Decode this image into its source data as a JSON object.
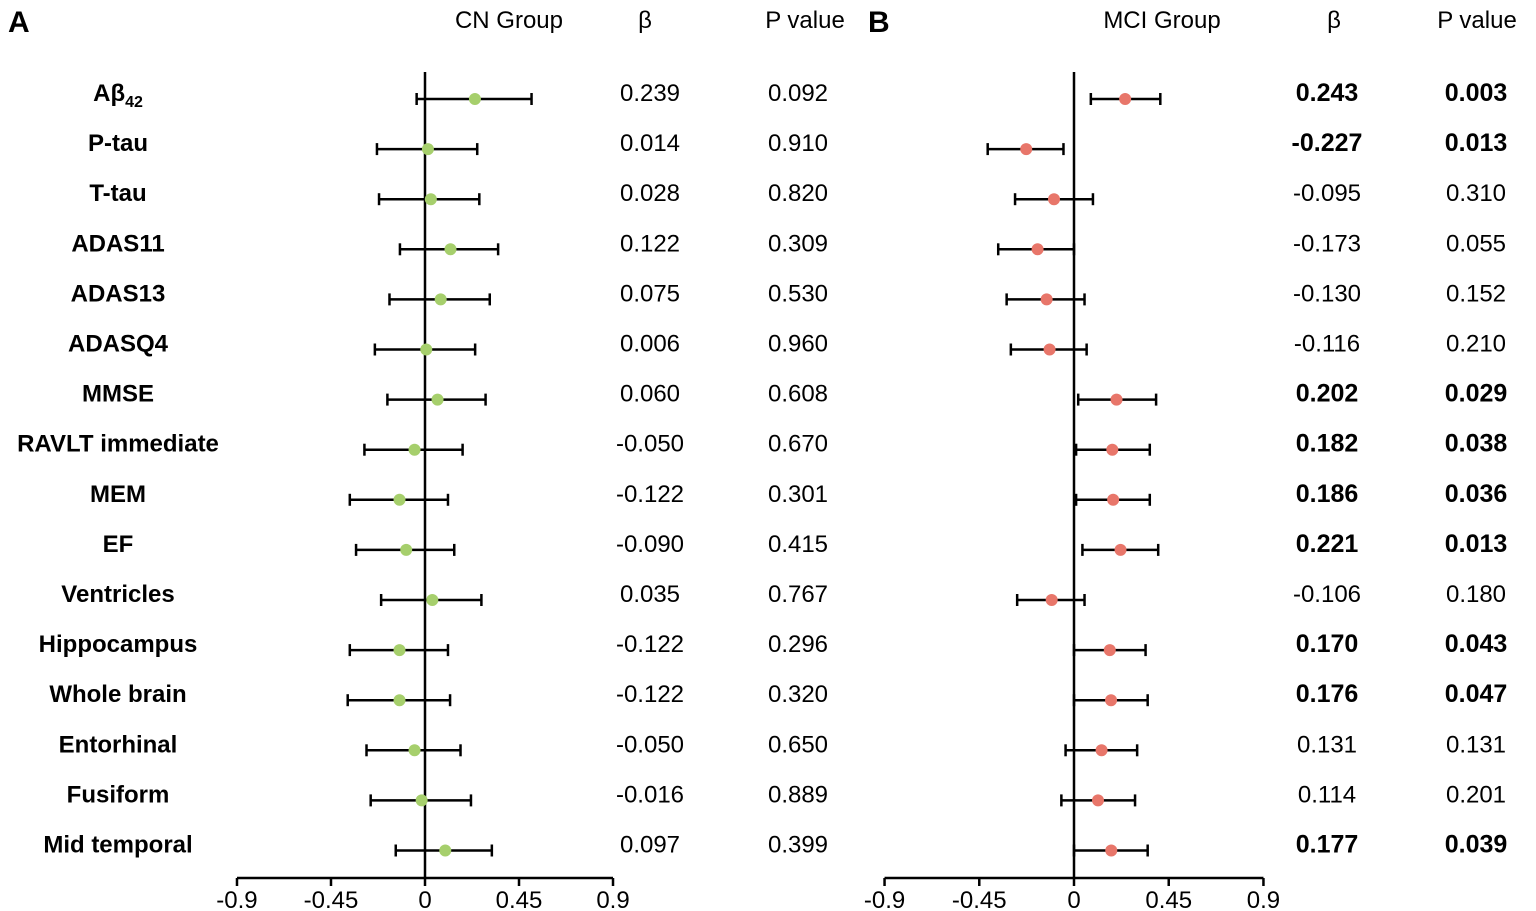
{
  "chart_data": [
    {
      "type": "forest",
      "panel": "A",
      "title": "CN Group",
      "beta_header": "β",
      "p_header": "P value",
      "point_color": "#a6cf6c",
      "xlim": [
        -0.9,
        0.9
      ],
      "x_ticks": [
        -0.9,
        -0.45,
        0,
        0.45,
        0.9
      ],
      "x_tick_labels": [
        "-0.9",
        "-0.45",
        "0",
        "0.45",
        "0.9"
      ],
      "rows": [
        {
          "label": "Aβ",
          "label_sub": "42",
          "beta": 0.239,
          "ci_low": -0.04,
          "ci_high": 0.51,
          "beta_text": "0.239",
          "p_text": "0.092",
          "significant": false
        },
        {
          "label": "P-tau",
          "beta": 0.014,
          "ci_low": -0.23,
          "ci_high": 0.25,
          "beta_text": "0.014",
          "p_text": "0.910",
          "significant": false
        },
        {
          "label": "T-tau",
          "beta": 0.028,
          "ci_low": -0.22,
          "ci_high": 0.26,
          "beta_text": "0.028",
          "p_text": "0.820",
          "significant": false
        },
        {
          "label": "ADAS11",
          "beta": 0.122,
          "ci_low": -0.12,
          "ci_high": 0.35,
          "beta_text": "0.122",
          "p_text": "0.309",
          "significant": false
        },
        {
          "label": "ADAS13",
          "beta": 0.075,
          "ci_low": -0.17,
          "ci_high": 0.31,
          "beta_text": "0.075",
          "p_text": "0.530",
          "significant": false
        },
        {
          "label": "ADASQ4",
          "beta": 0.006,
          "ci_low": -0.24,
          "ci_high": 0.24,
          "beta_text": "0.006",
          "p_text": "0.960",
          "significant": false
        },
        {
          "label": "MMSE",
          "beta": 0.06,
          "ci_low": -0.18,
          "ci_high": 0.29,
          "beta_text": "0.060",
          "p_text": "0.608",
          "significant": false
        },
        {
          "label": "RAVLT immediate",
          "beta": -0.05,
          "ci_low": -0.29,
          "ci_high": 0.18,
          "beta_text": "-0.050",
          "p_text": "0.670",
          "significant": false
        },
        {
          "label": "MEM",
          "beta": -0.122,
          "ci_low": -0.36,
          "ci_high": 0.11,
          "beta_text": "-0.122",
          "p_text": "0.301",
          "significant": false
        },
        {
          "label": "EF",
          "beta": -0.09,
          "ci_low": -0.33,
          "ci_high": 0.14,
          "beta_text": "-0.090",
          "p_text": "0.415",
          "significant": false
        },
        {
          "label": "Ventricles",
          "beta": 0.035,
          "ci_low": -0.21,
          "ci_high": 0.27,
          "beta_text": "0.035",
          "p_text": "0.767",
          "significant": false
        },
        {
          "label": "Hippocampus",
          "beta": -0.122,
          "ci_low": -0.36,
          "ci_high": 0.11,
          "beta_text": "-0.122",
          "p_text": "0.296",
          "significant": false
        },
        {
          "label": "Whole brain",
          "beta": -0.122,
          "ci_low": -0.37,
          "ci_high": 0.12,
          "beta_text": "-0.122",
          "p_text": "0.320",
          "significant": false
        },
        {
          "label": "Entorhinal",
          "beta": -0.05,
          "ci_low": -0.28,
          "ci_high": 0.17,
          "beta_text": "-0.050",
          "p_text": "0.650",
          "significant": false
        },
        {
          "label": "Fusiform",
          "beta": -0.016,
          "ci_low": -0.26,
          "ci_high": 0.22,
          "beta_text": "-0.016",
          "p_text": "0.889",
          "significant": false
        },
        {
          "label": "Mid temporal",
          "beta": 0.097,
          "ci_low": -0.14,
          "ci_high": 0.32,
          "beta_text": "0.097",
          "p_text": "0.399",
          "significant": false
        }
      ]
    },
    {
      "type": "forest",
      "panel": "B",
      "title": "MCI Group",
      "beta_header": "β",
      "p_header": "P value",
      "point_color": "#e8766a",
      "xlim": [
        -0.9,
        0.9
      ],
      "x_ticks": [
        -0.9,
        -0.45,
        0,
        0.45,
        0.9
      ],
      "x_tick_labels": [
        "-0.9",
        "-0.45",
        "0",
        "0.45",
        "0.9"
      ],
      "rows": [
        {
          "label": "Aβ42",
          "beta": 0.243,
          "ci_low": 0.08,
          "ci_high": 0.41,
          "beta_text": "0.243",
          "p_text": "0.003",
          "significant": true
        },
        {
          "label": "P-tau",
          "beta": -0.227,
          "ci_low": -0.41,
          "ci_high": -0.05,
          "beta_text": "-0.227",
          "p_text": "0.013",
          "significant": true
        },
        {
          "label": "T-tau",
          "beta": -0.095,
          "ci_low": -0.28,
          "ci_high": 0.09,
          "beta_text": "-0.095",
          "p_text": "0.310",
          "significant": false
        },
        {
          "label": "ADAS11",
          "beta": -0.173,
          "ci_low": -0.36,
          "ci_high": 0.0,
          "beta_text": "-0.173",
          "p_text": "0.055",
          "significant": false
        },
        {
          "label": "ADAS13",
          "beta": -0.13,
          "ci_low": -0.32,
          "ci_high": 0.05,
          "beta_text": "-0.130",
          "p_text": "0.152",
          "significant": false
        },
        {
          "label": "ADASQ4",
          "beta": -0.116,
          "ci_low": -0.3,
          "ci_high": 0.06,
          "beta_text": "-0.116",
          "p_text": "0.210",
          "significant": false
        },
        {
          "label": "MMSE",
          "beta": 0.202,
          "ci_low": 0.02,
          "ci_high": 0.39,
          "beta_text": "0.202",
          "p_text": "0.029",
          "significant": true
        },
        {
          "label": "RAVLT immediate",
          "beta": 0.182,
          "ci_low": 0.01,
          "ci_high": 0.36,
          "beta_text": "0.182",
          "p_text": "0.038",
          "significant": true
        },
        {
          "label": "MEM",
          "beta": 0.186,
          "ci_low": 0.01,
          "ci_high": 0.36,
          "beta_text": "0.186",
          "p_text": "0.036",
          "significant": true
        },
        {
          "label": "EF",
          "beta": 0.221,
          "ci_low": 0.04,
          "ci_high": 0.4,
          "beta_text": "0.221",
          "p_text": "0.013",
          "significant": true
        },
        {
          "label": "Ventricles",
          "beta": -0.106,
          "ci_low": -0.27,
          "ci_high": 0.05,
          "beta_text": "-0.106",
          "p_text": "0.180",
          "significant": false
        },
        {
          "label": "Hippocampus",
          "beta": 0.17,
          "ci_low": 0.0,
          "ci_high": 0.34,
          "beta_text": "0.170",
          "p_text": "0.043",
          "significant": true
        },
        {
          "label": "Whole brain",
          "beta": 0.176,
          "ci_low": 0.0,
          "ci_high": 0.35,
          "beta_text": "0.176",
          "p_text": "0.047",
          "significant": true
        },
        {
          "label": "Entorhinal",
          "beta": 0.131,
          "ci_low": -0.04,
          "ci_high": 0.3,
          "beta_text": "0.131",
          "p_text": "0.131",
          "significant": false
        },
        {
          "label": "Fusiform",
          "beta": 0.114,
          "ci_low": -0.06,
          "ci_high": 0.29,
          "beta_text": "0.114",
          "p_text": "0.201",
          "significant": false
        },
        {
          "label": "Mid temporal",
          "beta": 0.177,
          "ci_low": 0.0,
          "ci_high": 0.35,
          "beta_text": "0.177",
          "p_text": "0.039",
          "significant": true
        }
      ]
    }
  ]
}
